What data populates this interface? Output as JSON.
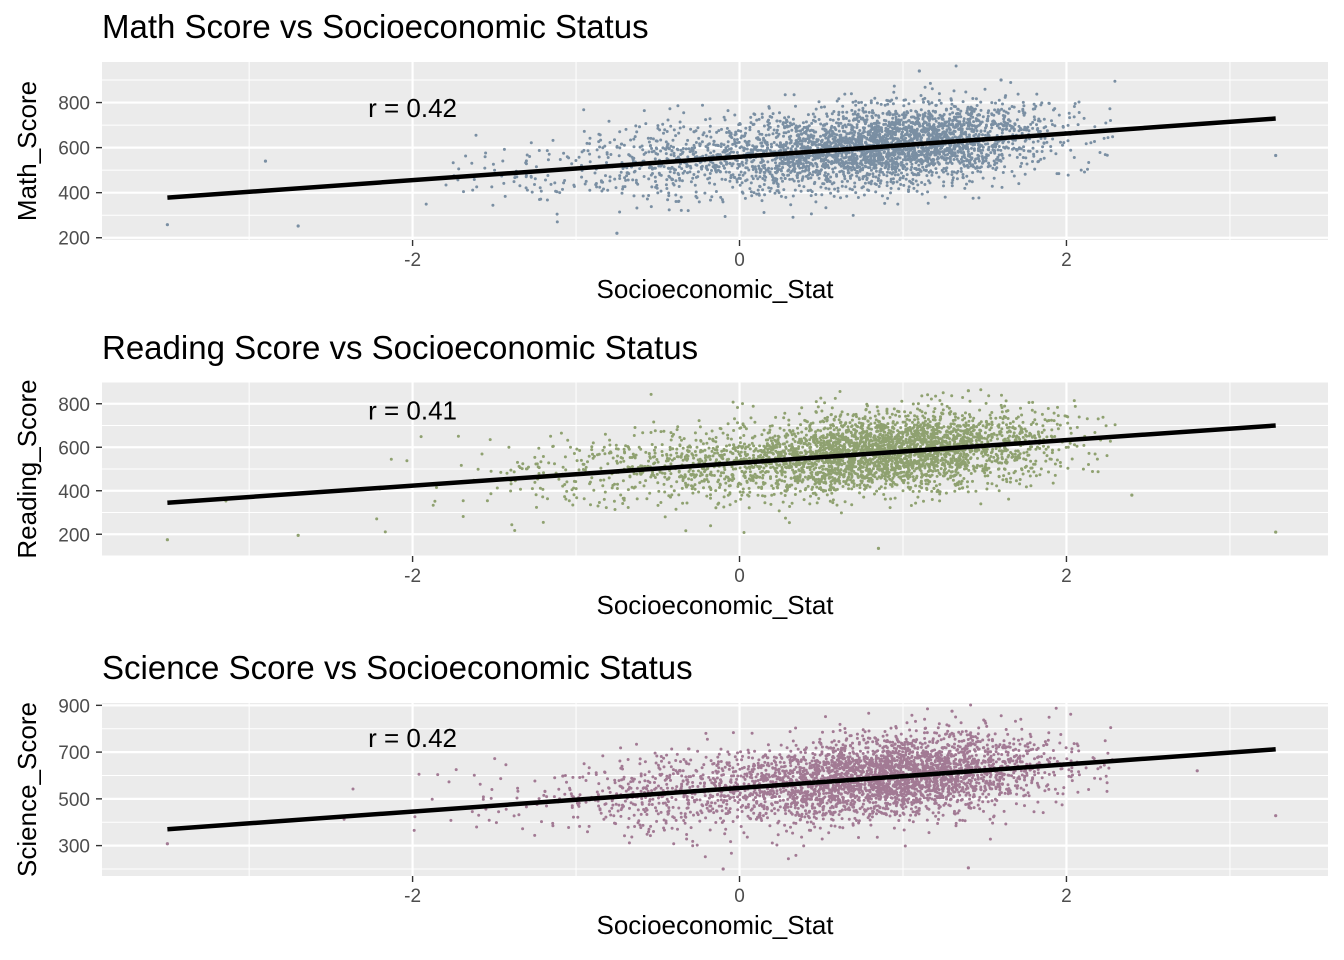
{
  "chart_data": [
    {
      "type": "scatter",
      "title": "Math Score vs Socioeconomic Status",
      "xlabel": "Socioeconomic_Stat",
      "ylabel": "Math_Score",
      "xlim": [
        -3.9,
        3.6
      ],
      "ylim": [
        190,
        980
      ],
      "xticks": [
        -2,
        0,
        2
      ],
      "yticks": [
        200,
        400,
        600,
        800
      ],
      "grid": true,
      "point_color": "#7a8fa3",
      "annotation": {
        "text": "r = 0.42",
        "x": -2.0,
        "y": 775
      },
      "fit_line": {
        "x": [
          -3.5,
          3.28
        ],
        "y": [
          378,
          729
        ]
      },
      "sample": {
        "n": 3600,
        "x_mean": 0.2,
        "x_sd": 0.75,
        "x_center_mix": [
          1.0,
          0.35
        ],
        "y_intercept": 560,
        "y_slope": 52,
        "y_noise_sd": 88
      },
      "points": [
        [
          -3.5,
          258
        ],
        [
          -2.7,
          252
        ],
        [
          -2.9,
          540
        ],
        [
          1.1,
          940
        ],
        [
          1.6,
          900
        ],
        [
          3.28,
          565
        ],
        [
          -0.75,
          220
        ]
      ]
    },
    {
      "type": "scatter",
      "title": "Reading Score vs Socioeconomic Status",
      "xlabel": "Socioeconomic_Stat",
      "ylabel": "Reading_Score",
      "xlim": [
        -3.9,
        3.6
      ],
      "ylim": [
        100,
        900
      ],
      "xticks": [
        -2,
        0,
        2
      ],
      "yticks": [
        200,
        400,
        600,
        800
      ],
      "grid": true,
      "point_color": "#8fa170",
      "annotation": {
        "text": "r = 0.41",
        "x": -2.0,
        "y": 770
      },
      "fit_line": {
        "x": [
          -3.5,
          3.28
        ],
        "y": [
          345,
          700
        ]
      },
      "sample": {
        "n": 3600,
        "x_mean": 0.2,
        "x_sd": 0.75,
        "x_center_mix": [
          1.0,
          0.35
        ],
        "y_intercept": 530,
        "y_slope": 52,
        "y_noise_sd": 90
      },
      "points": [
        [
          -3.5,
          175
        ],
        [
          -2.7,
          195
        ],
        [
          3.28,
          210
        ],
        [
          1.4,
          860
        ],
        [
          0.85,
          135
        ],
        [
          2.4,
          380
        ]
      ]
    },
    {
      "type": "scatter",
      "title": "Science Score vs Socioeconomic Status",
      "xlabel": "Socioeconomic_Stat",
      "ylabel": "Science_Score",
      "xlim": [
        -3.9,
        3.6
      ],
      "ylim": [
        170,
        910
      ],
      "xticks": [
        -2,
        0,
        2
      ],
      "yticks": [
        300,
        500,
        700,
        900
      ],
      "grid": true,
      "point_color": "#a27a94",
      "annotation": {
        "text": "r = 0.42",
        "x": -2.0,
        "y": 760
      },
      "fit_line": {
        "x": [
          -3.5,
          3.28
        ],
        "y": [
          370,
          712
        ]
      },
      "sample": {
        "n": 3600,
        "x_mean": 0.2,
        "x_sd": 0.75,
        "x_center_mix": [
          1.0,
          0.35
        ],
        "y_intercept": 545,
        "y_slope": 52,
        "y_noise_sd": 88
      },
      "points": [
        [
          -3.5,
          308
        ],
        [
          3.28,
          428
        ],
        [
          1.4,
          205
        ],
        [
          1.3,
          875
        ],
        [
          -0.1,
          200
        ],
        [
          2.8,
          620
        ]
      ]
    }
  ]
}
